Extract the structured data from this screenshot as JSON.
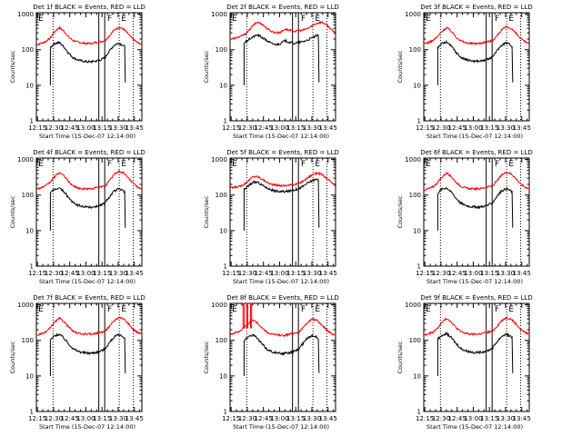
{
  "colors": {
    "events": "#000000",
    "lld": "#ff0000",
    "background": "#ffffff"
  },
  "chart_data": [
    {
      "type": "line",
      "title": "Det 1f BLACK = Events, RED = LLD"
    },
    {
      "type": "line",
      "title": "Det 2f BLACK = Events, RED = LLD"
    },
    {
      "type": "line",
      "title": "Det 3f BLACK = Events, RED = LLD"
    },
    {
      "type": "line",
      "title": "Det 4f BLACK = Events, RED = LLD"
    },
    {
      "type": "line",
      "title": "Det 5f BLACK = Events, RED = LLD"
    },
    {
      "type": "line",
      "title": "Det 6f BLACK = Events, RED = LLD"
    },
    {
      "type": "line",
      "title": "Det 7f BLACK = Events, RED = LLD"
    },
    {
      "type": "line",
      "title": "Det 8f BLACK = Events, RED = LLD"
    },
    {
      "type": "line",
      "title": "Det 9f BLACK = Events, RED = LLD"
    }
  ],
  "shared": {
    "xlabel": "Start Time (15-Dec-07 12:14:00)",
    "ylabel": "Counts/sec",
    "x_ticks": [
      "12:15",
      "12:30",
      "12:45",
      "13:00",
      "13:15",
      "13:30",
      "13:45"
    ],
    "y_ticks": [
      "1",
      "10",
      "100",
      "1000"
    ],
    "xlim_minutes": [
      0,
      98
    ],
    "ylim": [
      1,
      1100
    ],
    "y_scale": "log",
    "tick_offsets_min": [
      1,
      16,
      31,
      46,
      61,
      76,
      91
    ],
    "dotted_lines_min": [
      15.5,
      77,
      90
    ],
    "solid_lines_min": [
      58,
      63.5
    ],
    "region_labels": [
      {
        "at_min": 1,
        "text": "E"
      },
      {
        "at_min": 65,
        "text": "F"
      },
      {
        "at_min": 78,
        "text": "E"
      }
    ],
    "events_start_min": 13,
    "events_end_min": 82
  },
  "profiles": [
    {
      "name": "det1",
      "red": [
        140,
        150,
        170,
        210,
        320,
        420,
        330,
        230,
        180,
        165,
        155,
        150,
        150,
        160,
        170,
        180,
        250,
        360,
        430,
        380,
        280,
        200,
        160,
        140
      ],
      "black": [
        60,
        75,
        90,
        115,
        150,
        160,
        120,
        80,
        60,
        52,
        48,
        46,
        46,
        48,
        52,
        60,
        95,
        135,
        155,
        130,
        100,
        75,
        60,
        55
      ]
    },
    {
      "name": "det2",
      "red": [
        200,
        210,
        230,
        260,
        330,
        480,
        600,
        520,
        400,
        330,
        300,
        310,
        380,
        350,
        330,
        340,
        360,
        400,
        480,
        560,
        600,
        500,
        380,
        280
      ],
      "black": [
        90,
        100,
        120,
        150,
        190,
        230,
        260,
        220,
        180,
        150,
        140,
        150,
        180,
        160,
        150,
        160,
        170,
        190,
        220,
        250,
        260,
        220,
        170,
        130
      ]
    },
    {
      "name": "det3",
      "red": [
        150,
        160,
        180,
        230,
        330,
        420,
        330,
        230,
        180,
        160,
        150,
        150,
        150,
        160,
        170,
        180,
        250,
        360,
        440,
        400,
        300,
        210,
        170,
        150
      ],
      "black": [
        60,
        75,
        90,
        115,
        150,
        165,
        125,
        85,
        62,
        54,
        50,
        48,
        48,
        50,
        54,
        62,
        95,
        135,
        160,
        135,
        105,
        78,
        62,
        56
      ]
    },
    {
      "name": "det4",
      "red": [
        150,
        160,
        180,
        230,
        330,
        430,
        350,
        240,
        180,
        160,
        150,
        150,
        150,
        160,
        170,
        180,
        260,
        380,
        470,
        420,
        310,
        220,
        170,
        150
      ],
      "black": [
        55,
        70,
        85,
        110,
        145,
        160,
        125,
        85,
        60,
        52,
        48,
        46,
        46,
        48,
        52,
        60,
        92,
        130,
        150,
        130,
        100,
        76,
        60,
        54
      ]
    },
    {
      "name": "det5",
      "red": [
        160,
        165,
        175,
        200,
        250,
        330,
        330,
        280,
        230,
        200,
        190,
        185,
        185,
        190,
        200,
        210,
        250,
        310,
        380,
        420,
        380,
        300,
        230,
        180
      ],
      "black": [
        90,
        100,
        115,
        140,
        180,
        230,
        230,
        190,
        160,
        140,
        130,
        125,
        125,
        130,
        140,
        150,
        180,
        220,
        260,
        280,
        250,
        200,
        160,
        130
      ]
    },
    {
      "name": "det6",
      "red": [
        140,
        150,
        170,
        220,
        320,
        420,
        330,
        230,
        180,
        160,
        150,
        150,
        150,
        160,
        170,
        180,
        250,
        360,
        440,
        400,
        300,
        210,
        170,
        150
      ],
      "black": [
        60,
        72,
        88,
        112,
        148,
        160,
        120,
        82,
        60,
        52,
        48,
        46,
        46,
        48,
        52,
        60,
        92,
        132,
        152,
        130,
        100,
        76,
        60,
        55
      ]
    },
    {
      "name": "det7",
      "red": [
        140,
        150,
        170,
        220,
        320,
        420,
        340,
        240,
        180,
        160,
        150,
        150,
        150,
        160,
        170,
        180,
        250,
        360,
        450,
        410,
        300,
        210,
        170,
        150
      ],
      "black": [
        50,
        62,
        78,
        100,
        135,
        150,
        115,
        80,
        58,
        50,
        46,
        44,
        44,
        46,
        50,
        58,
        88,
        125,
        145,
        125,
        95,
        72,
        58,
        52
      ]
    },
    {
      "name": "det8",
      "red": [
        150,
        160,
        180,
        220,
        300,
        380,
        300,
        220,
        170,
        150,
        145,
        140,
        140,
        150,
        160,
        170,
        230,
        330,
        400,
        360,
        270,
        200,
        160,
        140
      ],
      "black": [
        45,
        60,
        75,
        95,
        130,
        145,
        110,
        78,
        57,
        49,
        45,
        43,
        43,
        45,
        49,
        57,
        85,
        120,
        140,
        120,
        92,
        70,
        55,
        50
      ]
    },
    {
      "name": "det9",
      "red": [
        140,
        150,
        170,
        220,
        320,
        420,
        330,
        230,
        180,
        160,
        150,
        150,
        150,
        160,
        170,
        180,
        250,
        360,
        440,
        400,
        300,
        210,
        170,
        150
      ],
      "black": [
        55,
        68,
        85,
        108,
        142,
        155,
        118,
        82,
        60,
        52,
        48,
        46,
        46,
        48,
        52,
        60,
        92,
        130,
        150,
        128,
        98,
        75,
        60,
        54
      ]
    }
  ]
}
